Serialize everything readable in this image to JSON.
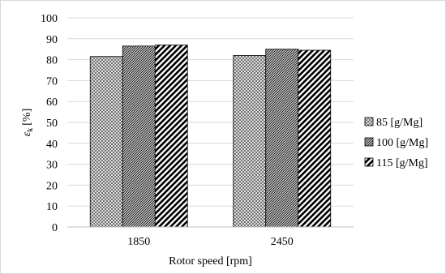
{
  "chart_data": {
    "type": "bar",
    "categories": [
      "1850",
      "2450"
    ],
    "series": [
      {
        "name": "85 [g/Mg]",
        "values": [
          81.5,
          82.0
        ],
        "pattern": "crosshatch"
      },
      {
        "name": "100 [g/Mg]",
        "values": [
          86.5,
          85.0
        ],
        "pattern": "dense-diagonal"
      },
      {
        "name": "115 [g/Mg]",
        "values": [
          87.0,
          84.5
        ],
        "pattern": "wide-diagonal"
      }
    ],
    "xlabel": "Rotor speed [rpm]",
    "ylabel_symbol": "ε",
    "ylabel_subscript": "k",
    "ylabel_unit": "[%]",
    "ylim": [
      0,
      100
    ],
    "yticks": [
      "0",
      "10",
      "20",
      "30",
      "40",
      "50",
      "60",
      "70",
      "80",
      "90",
      "100"
    ],
    "grid": true,
    "legend_position": "right"
  }
}
